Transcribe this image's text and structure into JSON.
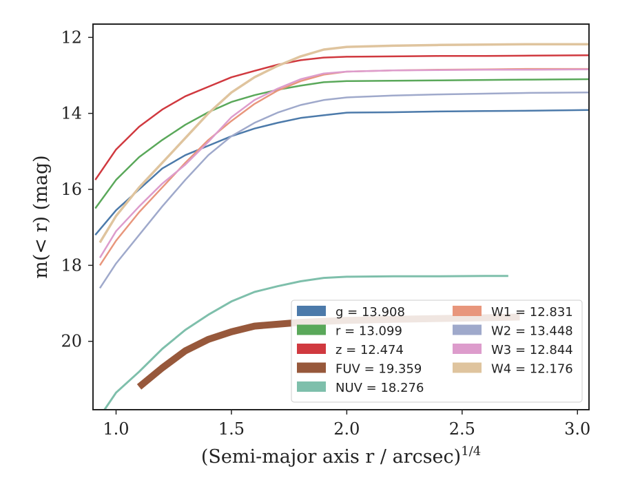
{
  "chart_data": {
    "type": "line",
    "xlabel": "(Semi-major axis r / arcsec)",
    "xlabel_power": "1/4",
    "ylabel": "m(< r) (mag)",
    "xlim": [
      0.9,
      3.05
    ],
    "ylim": [
      21.8,
      11.65
    ],
    "y_inverted": true,
    "grid": false,
    "legend_position": "lower-right",
    "xticks": [
      1.0,
      1.5,
      2.0,
      2.5,
      3.0
    ],
    "xtick_labels": [
      "1.0",
      "1.5",
      "2.0",
      "2.5",
      "3.0"
    ],
    "yticks": [
      12,
      14,
      16,
      18,
      20
    ],
    "ytick_labels": [
      "12",
      "14",
      "16",
      "18",
      "20"
    ],
    "legend_columns": [
      [
        {
          "label": "g = 13.908",
          "color": "#4c7aaa"
        },
        {
          "label": "r = 13.099",
          "color": "#5aa85a"
        },
        {
          "label": "z = 12.474",
          "color": "#d0393f"
        },
        {
          "label": "FUV = 19.359",
          "color": "#97583b"
        },
        {
          "label": "NUV = 18.276",
          "color": "#7ebfab"
        }
      ],
      [
        {
          "label": "W1 = 12.831",
          "color": "#e8967c"
        },
        {
          "label": "W2 = 13.448",
          "color": "#9fa9cb"
        },
        {
          "label": "W3 = 12.844",
          "color": "#dd9ccc"
        },
        {
          "label": "W4 = 12.176",
          "color": "#dfc49e"
        }
      ]
    ],
    "series": [
      {
        "name": "g",
        "color": "#4c7aaa",
        "x": [
          0.91,
          1.0,
          1.1,
          1.2,
          1.3,
          1.4,
          1.5,
          1.6,
          1.7,
          1.8,
          1.9,
          2.0,
          2.2,
          2.4,
          2.6,
          2.8,
          3.05
        ],
        "y": [
          17.2,
          16.55,
          16.0,
          15.45,
          15.1,
          14.85,
          14.6,
          14.4,
          14.25,
          14.12,
          14.05,
          13.98,
          13.97,
          13.95,
          13.94,
          13.93,
          13.91
        ]
      },
      {
        "name": "r",
        "color": "#5aa85a",
        "x": [
          0.91,
          1.0,
          1.1,
          1.2,
          1.3,
          1.4,
          1.5,
          1.6,
          1.7,
          1.8,
          1.9,
          2.0,
          2.2,
          2.4,
          2.6,
          2.8,
          3.05
        ],
        "y": [
          16.5,
          15.75,
          15.15,
          14.7,
          14.3,
          13.97,
          13.7,
          13.52,
          13.38,
          13.27,
          13.18,
          13.15,
          13.14,
          13.13,
          13.12,
          13.11,
          13.1
        ]
      },
      {
        "name": "z",
        "color": "#d0393f",
        "x": [
          0.91,
          1.0,
          1.1,
          1.2,
          1.3,
          1.4,
          1.5,
          1.6,
          1.7,
          1.8,
          1.9,
          2.0,
          2.2,
          2.4,
          2.6,
          2.8,
          3.05
        ],
        "y": [
          15.75,
          14.95,
          14.35,
          13.9,
          13.55,
          13.3,
          13.05,
          12.88,
          12.72,
          12.6,
          12.53,
          12.51,
          12.5,
          12.49,
          12.49,
          12.48,
          12.47
        ]
      },
      {
        "name": "FUV",
        "color": "#97583b",
        "x": [
          1.1,
          1.2,
          1.3,
          1.4,
          1.5,
          1.6,
          1.8,
          2.0,
          2.2,
          2.4,
          2.6,
          2.75
        ],
        "y": [
          21.2,
          20.7,
          20.25,
          19.95,
          19.75,
          19.6,
          19.5,
          19.45,
          19.42,
          19.4,
          19.38,
          19.36
        ]
      },
      {
        "name": "NUV",
        "color": "#7ebfab",
        "x": [
          0.95,
          1.0,
          1.1,
          1.2,
          1.3,
          1.4,
          1.5,
          1.6,
          1.7,
          1.8,
          1.9,
          2.0,
          2.2,
          2.4,
          2.6,
          2.7
        ],
        "y": [
          21.8,
          21.35,
          20.8,
          20.2,
          19.7,
          19.3,
          18.95,
          18.7,
          18.55,
          18.42,
          18.33,
          18.3,
          18.29,
          18.29,
          18.28,
          18.28
        ]
      },
      {
        "name": "W1",
        "color": "#e8967c",
        "x": [
          0.93,
          1.0,
          1.1,
          1.2,
          1.3,
          1.4,
          1.5,
          1.6,
          1.7,
          1.8,
          1.9,
          2.0,
          2.2,
          2.4,
          2.6,
          2.8,
          3.05
        ],
        "y": [
          18.0,
          17.35,
          16.6,
          15.95,
          15.3,
          14.7,
          14.2,
          13.75,
          13.4,
          13.15,
          12.98,
          12.9,
          12.87,
          12.85,
          12.84,
          12.83,
          12.83
        ]
      },
      {
        "name": "W2",
        "color": "#9fa9cb",
        "x": [
          0.93,
          1.0,
          1.1,
          1.2,
          1.3,
          1.4,
          1.5,
          1.6,
          1.7,
          1.8,
          1.9,
          2.0,
          2.2,
          2.4,
          2.6,
          2.8,
          3.05
        ],
        "y": [
          18.6,
          17.95,
          17.2,
          16.45,
          15.75,
          15.1,
          14.6,
          14.25,
          13.98,
          13.78,
          13.65,
          13.58,
          13.53,
          13.5,
          13.48,
          13.46,
          13.45
        ]
      },
      {
        "name": "W3",
        "color": "#dd9ccc",
        "x": [
          0.93,
          1.0,
          1.1,
          1.2,
          1.3,
          1.4,
          1.5,
          1.6,
          1.7,
          1.8,
          1.9,
          2.0,
          2.2,
          2.4,
          2.6,
          2.8,
          3.05
        ],
        "y": [
          17.8,
          17.1,
          16.45,
          15.85,
          15.35,
          14.75,
          14.1,
          13.65,
          13.35,
          13.1,
          12.95,
          12.9,
          12.87,
          12.86,
          12.85,
          12.85,
          12.84
        ]
      },
      {
        "name": "W4",
        "color": "#dfc49e",
        "x": [
          0.93,
          1.0,
          1.1,
          1.2,
          1.3,
          1.4,
          1.5,
          1.6,
          1.7,
          1.8,
          1.9,
          2.0,
          2.2,
          2.4,
          2.6,
          2.8,
          3.05
        ],
        "y": [
          17.4,
          16.7,
          15.95,
          15.3,
          14.65,
          14.0,
          13.45,
          13.05,
          12.75,
          12.5,
          12.32,
          12.25,
          12.22,
          12.2,
          12.19,
          12.18,
          12.18
        ]
      }
    ]
  }
}
